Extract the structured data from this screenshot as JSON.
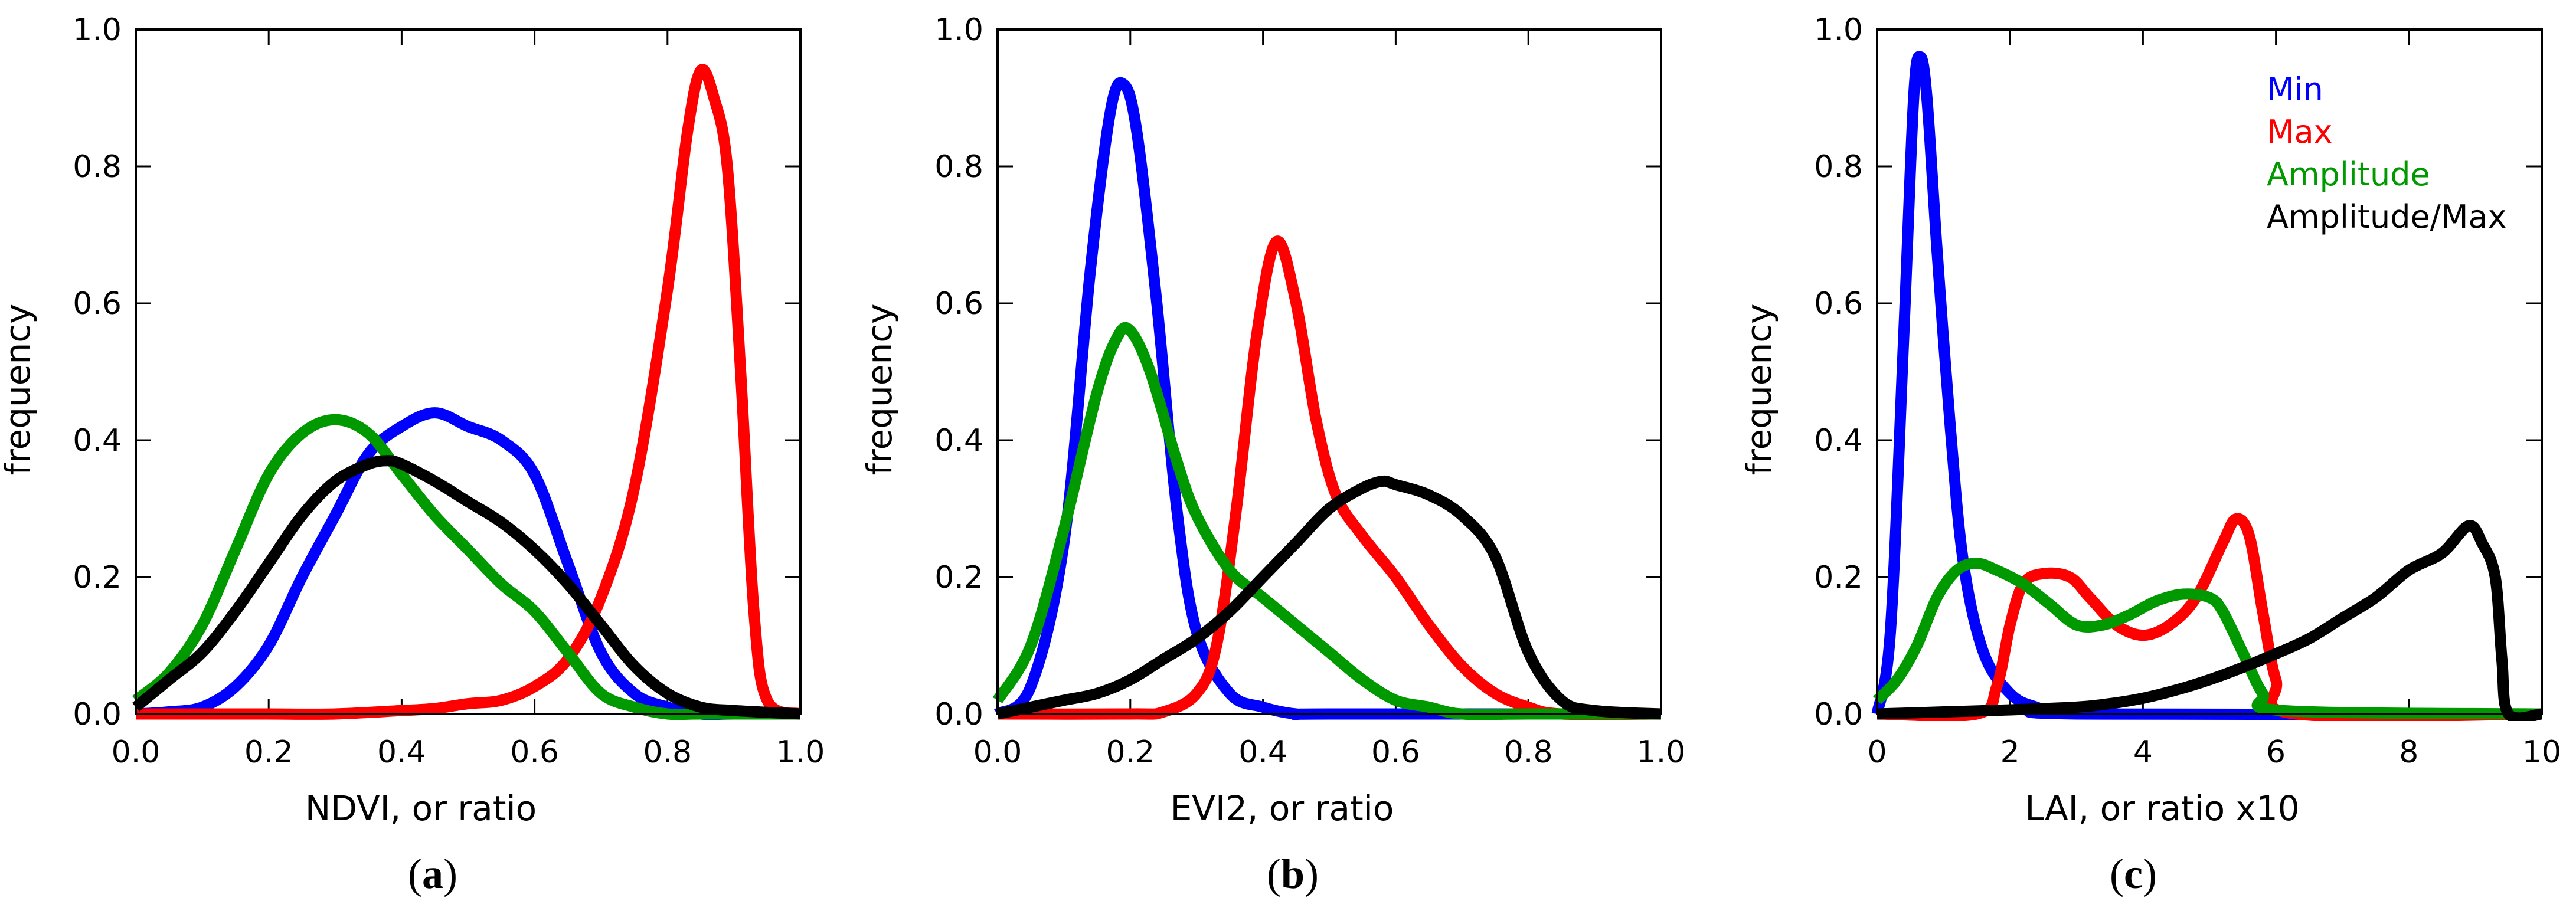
{
  "chart_data": [
    {
      "id": "a",
      "type": "line",
      "xlabel": "NDVI, or ratio",
      "ylabel": "frequency",
      "xlim": [
        0,
        1
      ],
      "ylim": [
        0,
        1
      ],
      "xticks": [
        0.0,
        0.2,
        0.4,
        0.6,
        0.8,
        1.0
      ],
      "xtick_labels": [
        "0.0",
        "0.2",
        "0.4",
        "0.6",
        "0.8",
        "1.0"
      ],
      "yticks": [
        0.0,
        0.2,
        0.4,
        0.6,
        0.8,
        1.0
      ],
      "ytick_labels": [
        "0.0",
        "0.2",
        "0.4",
        "0.6",
        "0.8",
        "1.0"
      ],
      "series": [
        {
          "name": "Min",
          "color": "#0000ff",
          "x": [
            0,
            0.05,
            0.1,
            0.15,
            0.2,
            0.25,
            0.3,
            0.35,
            0.4,
            0.45,
            0.5,
            0.55,
            0.6,
            0.65,
            0.7,
            0.75,
            0.8,
            0.85,
            0.9,
            1.0
          ],
          "y": [
            0,
            0.003,
            0.01,
            0.04,
            0.1,
            0.2,
            0.29,
            0.38,
            0.42,
            0.44,
            0.42,
            0.4,
            0.35,
            0.22,
            0.09,
            0.03,
            0.01,
            0,
            0,
            0
          ]
        },
        {
          "name": "Max",
          "color": "#ff0000",
          "x": [
            0,
            0.1,
            0.2,
            0.3,
            0.4,
            0.45,
            0.5,
            0.55,
            0.6,
            0.65,
            0.7,
            0.75,
            0.8,
            0.83,
            0.85,
            0.87,
            0.89,
            0.91,
            0.93,
            0.95,
            1.0
          ],
          "y": [
            0,
            0,
            0,
            0,
            0.005,
            0.008,
            0.015,
            0.02,
            0.04,
            0.08,
            0.17,
            0.33,
            0.62,
            0.85,
            0.94,
            0.9,
            0.8,
            0.5,
            0.15,
            0.02,
            0
          ]
        },
        {
          "name": "Amplitude",
          "color": "#009900",
          "x": [
            0,
            0.05,
            0.1,
            0.15,
            0.2,
            0.25,
            0.3,
            0.35,
            0.4,
            0.45,
            0.5,
            0.55,
            0.6,
            0.65,
            0.7,
            0.75,
            0.8,
            0.85,
            1.0
          ],
          "y": [
            0.02,
            0.06,
            0.13,
            0.24,
            0.35,
            0.41,
            0.43,
            0.41,
            0.35,
            0.29,
            0.24,
            0.19,
            0.15,
            0.09,
            0.03,
            0.01,
            0,
            0,
            0
          ]
        },
        {
          "name": "Amplitude/Max",
          "color": "#000000",
          "x": [
            0,
            0.05,
            0.1,
            0.15,
            0.2,
            0.25,
            0.3,
            0.35,
            0.38,
            0.4,
            0.45,
            0.5,
            0.55,
            0.6,
            0.65,
            0.7,
            0.75,
            0.8,
            0.85,
            0.9,
            1.0
          ],
          "y": [
            0.01,
            0.05,
            0.09,
            0.15,
            0.22,
            0.29,
            0.34,
            0.365,
            0.37,
            0.365,
            0.34,
            0.31,
            0.28,
            0.24,
            0.19,
            0.13,
            0.07,
            0.03,
            0.01,
            0.005,
            0
          ]
        }
      ],
      "panel_label": {
        "open": "(",
        "letter": "a",
        "close": ")"
      }
    },
    {
      "id": "b",
      "type": "line",
      "xlabel": "EVI2, or ratio",
      "ylabel": "frequency",
      "xlim": [
        0,
        1
      ],
      "ylim": [
        0,
        1
      ],
      "xticks": [
        0.0,
        0.2,
        0.4,
        0.6,
        0.8,
        1.0
      ],
      "xtick_labels": [
        "0.0",
        "0.2",
        "0.4",
        "0.6",
        "0.8",
        "1.0"
      ],
      "yticks": [
        0.0,
        0.2,
        0.4,
        0.6,
        0.8,
        1.0
      ],
      "ytick_labels": [
        "0.0",
        "0.2",
        "0.4",
        "0.6",
        "0.8",
        "1.0"
      ],
      "series": [
        {
          "name": "Min",
          "color": "#0000ff",
          "x": [
            0,
            0.05,
            0.1,
            0.14,
            0.17,
            0.19,
            0.21,
            0.24,
            0.27,
            0.3,
            0.35,
            0.4,
            0.45,
            0.5,
            1.0
          ],
          "y": [
            0,
            0.04,
            0.25,
            0.65,
            0.88,
            0.92,
            0.85,
            0.6,
            0.3,
            0.12,
            0.03,
            0.01,
            0,
            0,
            0
          ]
        },
        {
          "name": "Max",
          "color": "#ff0000",
          "x": [
            0,
            0.2,
            0.25,
            0.3,
            0.33,
            0.36,
            0.39,
            0.42,
            0.45,
            0.48,
            0.51,
            0.55,
            0.6,
            0.65,
            0.7,
            0.75,
            0.8,
            0.85,
            1.0
          ],
          "y": [
            0,
            0,
            0.003,
            0.03,
            0.1,
            0.3,
            0.55,
            0.69,
            0.6,
            0.43,
            0.32,
            0.26,
            0.2,
            0.13,
            0.07,
            0.03,
            0.01,
            0,
            0
          ]
        },
        {
          "name": "Amplitude",
          "color": "#009900",
          "x": [
            0,
            0.05,
            0.1,
            0.15,
            0.18,
            0.2,
            0.23,
            0.27,
            0.3,
            0.35,
            0.4,
            0.45,
            0.5,
            0.55,
            0.6,
            0.65,
            0.7,
            0.8,
            1.0
          ],
          "y": [
            0.02,
            0.1,
            0.27,
            0.47,
            0.55,
            0.56,
            0.5,
            0.37,
            0.29,
            0.21,
            0.17,
            0.13,
            0.09,
            0.05,
            0.02,
            0.01,
            0,
            0,
            0
          ]
        },
        {
          "name": "Amplitude/Max",
          "color": "#000000",
          "x": [
            0,
            0.05,
            0.1,
            0.15,
            0.2,
            0.25,
            0.3,
            0.35,
            0.4,
            0.45,
            0.5,
            0.55,
            0.58,
            0.6,
            0.65,
            0.7,
            0.75,
            0.8,
            0.85,
            0.9,
            1.0
          ],
          "y": [
            0,
            0.01,
            0.02,
            0.03,
            0.05,
            0.08,
            0.11,
            0.15,
            0.2,
            0.25,
            0.3,
            0.33,
            0.34,
            0.335,
            0.32,
            0.29,
            0.23,
            0.09,
            0.02,
            0.005,
            0
          ]
        }
      ],
      "panel_label": {
        "open": "(",
        "letter": "b",
        "close": ")"
      }
    },
    {
      "id": "c",
      "type": "line",
      "xlabel": "LAI, or ratio x10",
      "ylabel": "frequency",
      "xlim": [
        0,
        10
      ],
      "ylim": [
        0,
        1
      ],
      "xticks": [
        0,
        2,
        4,
        6,
        8,
        10
      ],
      "xtick_labels": [
        "0",
        "2",
        "4",
        "6",
        "8",
        "10"
      ],
      "yticks": [
        0.0,
        0.2,
        0.4,
        0.6,
        0.8,
        1.0
      ],
      "ytick_labels": [
        "0.0",
        "0.2",
        "0.4",
        "0.6",
        "0.8",
        "1.0"
      ],
      "legend": {
        "position": "top-right",
        "entries": [
          "Min",
          "Max",
          "Amplitude",
          "Amplitude/Max"
        ]
      },
      "series": [
        {
          "name": "Min",
          "color": "#0000ff",
          "x": [
            0,
            0.2,
            0.4,
            0.55,
            0.65,
            0.75,
            0.9,
            1.1,
            1.3,
            1.6,
            2.0,
            2.4,
            3.0,
            10
          ],
          "y": [
            0,
            0.12,
            0.55,
            0.9,
            0.96,
            0.9,
            0.68,
            0.42,
            0.22,
            0.09,
            0.03,
            0.01,
            0,
            0
          ]
        },
        {
          "name": "Max",
          "color": "#ff0000",
          "x": [
            0,
            1.5,
            1.8,
            2.0,
            2.2,
            2.5,
            2.9,
            3.2,
            3.6,
            4.0,
            4.4,
            4.8,
            5.2,
            5.4,
            5.6,
            5.8,
            6.0,
            6.3,
            10
          ],
          "y": [
            0,
            0,
            0.04,
            0.13,
            0.19,
            0.205,
            0.2,
            0.17,
            0.13,
            0.115,
            0.13,
            0.17,
            0.25,
            0.285,
            0.26,
            0.15,
            0.05,
            0,
            0
          ]
        },
        {
          "name": "Amplitude",
          "color": "#009900",
          "x": [
            0,
            0.3,
            0.6,
            0.9,
            1.2,
            1.5,
            1.8,
            2.2,
            2.6,
            3.0,
            3.4,
            3.8,
            4.2,
            4.6,
            5.0,
            5.2,
            5.5,
            5.8,
            6.1,
            10
          ],
          "y": [
            0.02,
            0.05,
            0.1,
            0.17,
            0.21,
            0.22,
            0.21,
            0.19,
            0.16,
            0.13,
            0.13,
            0.145,
            0.165,
            0.175,
            0.17,
            0.15,
            0.09,
            0.03,
            0.005,
            0
          ]
        },
        {
          "name": "Amplitude/Max",
          "color": "#000000",
          "x": [
            0,
            1,
            2,
            3,
            3.5,
            4,
            4.5,
            5,
            5.5,
            6,
            6.5,
            7,
            7.5,
            8,
            8.5,
            8.9,
            9.1,
            9.3,
            9.4,
            9.5,
            10
          ],
          "y": [
            0,
            0.003,
            0.006,
            0.01,
            0.015,
            0.023,
            0.035,
            0.05,
            0.068,
            0.088,
            0.11,
            0.14,
            0.17,
            0.21,
            0.235,
            0.275,
            0.25,
            0.2,
            0.08,
            0,
            0
          ]
        }
      ],
      "panel_label": {
        "open": "(",
        "letter": "c",
        "close": ")"
      }
    }
  ]
}
